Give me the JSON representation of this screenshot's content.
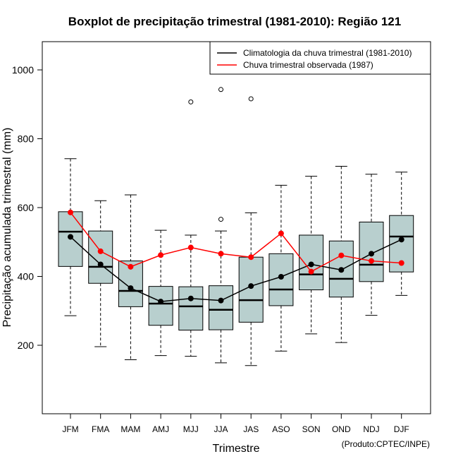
{
  "chart_data": {
    "type": "boxplot",
    "title": "Boxplot de precipitação trimestral (1981-2010): Região 121",
    "xlabel": "Trimestre",
    "ylabel": "Precipitação acumulada trimestral (mm)",
    "credit": "(Produto:CPTEC/INPE)",
    "ylim": [
      0,
      1080
    ],
    "yticks": [
      200,
      400,
      600,
      800,
      1000
    ],
    "categories": [
      "JFM",
      "FMA",
      "MAM",
      "AMJ",
      "MJJ",
      "JJA",
      "JAS",
      "ASO",
      "SON",
      "OND",
      "NDJ",
      "DJF"
    ],
    "boxes": [
      {
        "whisker_low": 286,
        "q1": 429,
        "median": 530,
        "q3": 588,
        "whisker_high": 742,
        "outliers": []
      },
      {
        "whisker_low": 196,
        "q1": 380,
        "median": 428,
        "q3": 532,
        "whisker_high": 620,
        "outliers": []
      },
      {
        "whisker_low": 158,
        "q1": 312,
        "median": 358,
        "q3": 445,
        "whisker_high": 637,
        "outliers": []
      },
      {
        "whisker_low": 170,
        "q1": 258,
        "median": 321,
        "q3": 371,
        "whisker_high": 534,
        "outliers": []
      },
      {
        "whisker_low": 168,
        "q1": 244,
        "median": 313,
        "q3": 370,
        "whisker_high": 520,
        "outliers": [
          907
        ]
      },
      {
        "whisker_low": 149,
        "q1": 245,
        "median": 303,
        "q3": 373,
        "whisker_high": 532,
        "outliers": [
          566,
          943
        ]
      },
      {
        "whisker_low": 141,
        "q1": 267,
        "median": 331,
        "q3": 456,
        "whisker_high": 585,
        "outliers": [
          916
        ]
      },
      {
        "whisker_low": 183,
        "q1": 315,
        "median": 362,
        "q3": 466,
        "whisker_high": 665,
        "outliers": []
      },
      {
        "whisker_low": 233,
        "q1": 361,
        "median": 406,
        "q3": 520,
        "whisker_high": 691,
        "outliers": []
      },
      {
        "whisker_low": 208,
        "q1": 340,
        "median": 393,
        "q3": 503,
        "whisker_high": 720,
        "outliers": []
      },
      {
        "whisker_low": 287,
        "q1": 385,
        "median": 434,
        "q3": 558,
        "whisker_high": 697,
        "outliers": []
      },
      {
        "whisker_low": 345,
        "q1": 413,
        "median": 516,
        "q3": 577,
        "whisker_high": 703,
        "outliers": []
      }
    ],
    "series": [
      {
        "name": "Climatologia da chuva trimestral (1981-2010)",
        "color": "#000000",
        "values": [
          515,
          435,
          366,
          327,
          336,
          330,
          372,
          399,
          435,
          419,
          466,
          507
        ]
      },
      {
        "name": "Chuva trimestral observada (1987)",
        "color": "#ff0000",
        "values": [
          586,
          473,
          428,
          462,
          484,
          466,
          456,
          525,
          414,
          461,
          445,
          439
        ]
      }
    ],
    "legend_position": "top-right",
    "box_fill": "#b8cfce"
  }
}
